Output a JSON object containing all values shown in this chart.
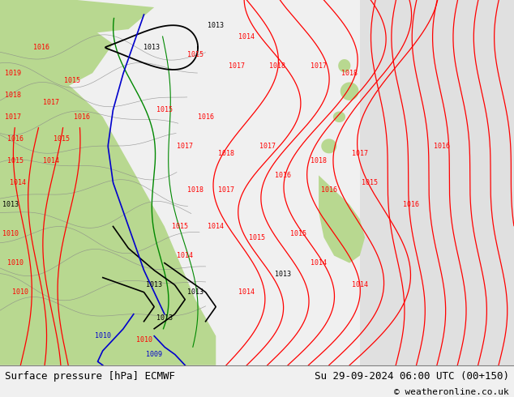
{
  "title_left": "Surface pressure [hPa] ECMWF",
  "title_right": "Su 29-09-2024 06:00 UTC (00+150)",
  "copyright": "© weatheronline.co.uk",
  "fig_width": 6.34,
  "fig_height": 4.9,
  "dpi": 100,
  "bg_color": "#f0f0f0",
  "map_bg_color": "#d8d8d8",
  "land_color_green": "#b8d890",
  "label_fontsize": 9,
  "copyright_fontsize": 8,
  "red": "#ff0000",
  "black": "#000000",
  "blue": "#0000cc",
  "gray": "#888888",
  "green_line": "#008800"
}
